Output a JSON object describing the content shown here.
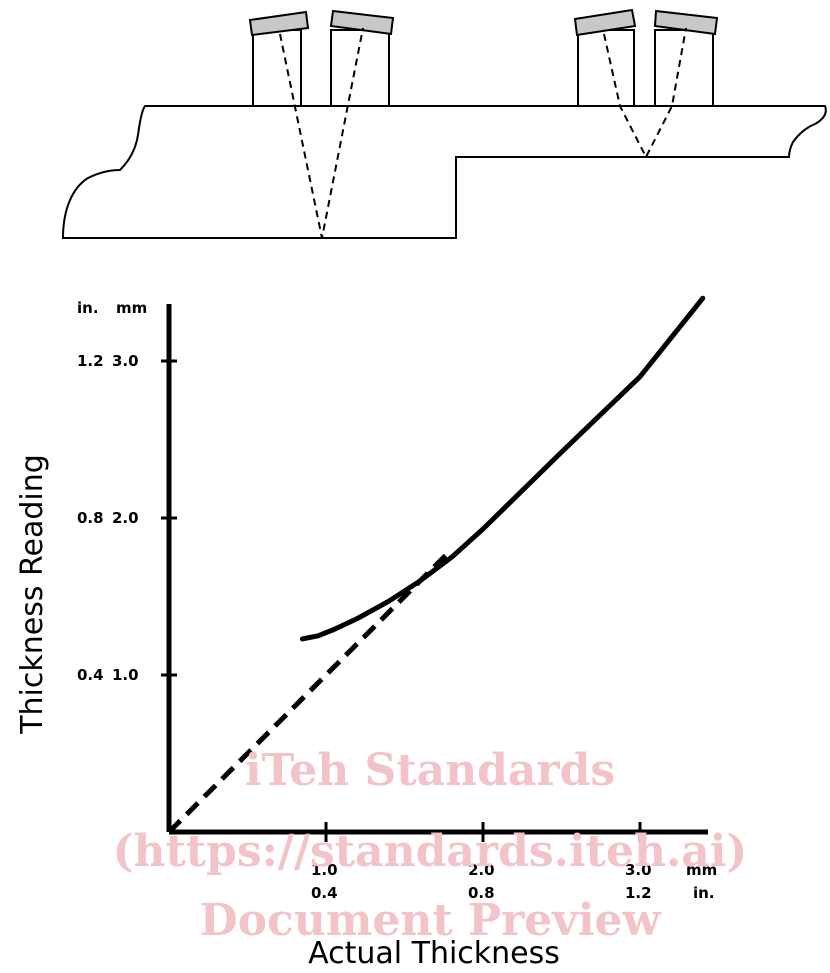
{
  "watermark": {
    "line1": "iTeh Standards",
    "line2": "(https://standards.iteh.ai)",
    "line3": "Document Preview"
  },
  "colors": {
    "line": "#000000",
    "transducer_face": "#c8c8c8",
    "watermark": "#f2c4c8",
    "background": "#ffffff"
  },
  "chart_data": {
    "type": "line",
    "title": "",
    "xlabel": "Actual Thickness",
    "ylabel": "Thickness Reading",
    "x_unit_primary": "mm",
    "x_unit_secondary": "in.",
    "y_unit_primary": "mm",
    "y_unit_secondary": "in.",
    "xlim": [
      0,
      3.4
    ],
    "ylim": [
      0,
      3.4
    ],
    "x_ticks": [
      {
        "mm": "1.0",
        "in": "0.4",
        "value": 1.0
      },
      {
        "mm": "2.0",
        "in": "0.8",
        "value": 2.0
      },
      {
        "mm": "3.0",
        "in": "1.2",
        "value": 3.0
      }
    ],
    "y_ticks": [
      {
        "in": "0.4",
        "mm": "1.0",
        "value": 1.0
      },
      {
        "in": "0.8",
        "mm": "2.0",
        "value": 2.0
      },
      {
        "in": "1.2",
        "mm": "3.0",
        "value": 3.0
      }
    ],
    "series": [
      {
        "style": "solid",
        "x": [
          0.85,
          0.95,
          1.05,
          1.2,
          1.4,
          1.6,
          1.8,
          2.0,
          2.5,
          3.0,
          3.4
        ],
        "y": [
          1.23,
          1.25,
          1.29,
          1.36,
          1.47,
          1.6,
          1.75,
          1.93,
          2.42,
          2.9,
          3.4
        ]
      },
      {
        "style": "dashed",
        "x": [
          0,
          1.8
        ],
        "y": [
          0,
          1.8
        ]
      }
    ]
  }
}
